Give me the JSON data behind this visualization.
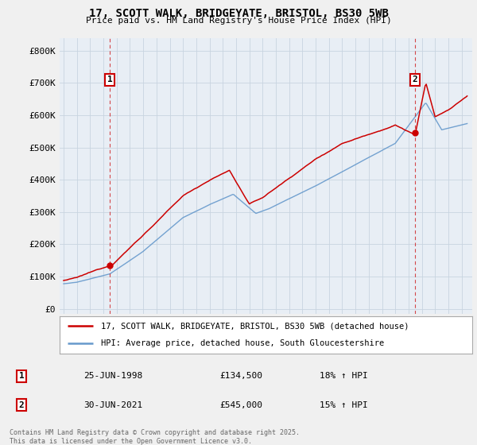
{
  "title_line1": "17, SCOTT WALK, BRIDGEYATE, BRISTOL, BS30 5WB",
  "title_line2": "Price paid vs. HM Land Registry's House Price Index (HPI)",
  "property_color": "#cc0000",
  "hpi_color": "#6699cc",
  "plot_bg_color": "#e8eef5",
  "fig_bg_color": "#f0f0f0",
  "yticks": [
    0,
    100000,
    200000,
    300000,
    400000,
    500000,
    600000,
    700000,
    800000
  ],
  "ytick_labels": [
    "£0",
    "£100K",
    "£200K",
    "£300K",
    "£400K",
    "£500K",
    "£600K",
    "£700K",
    "£800K"
  ],
  "ylim": [
    -15000,
    840000
  ],
  "xlim_left": 1994.7,
  "xlim_right": 2025.8,
  "sale1_x": 1998.48,
  "sale1_y": 134500,
  "sale1_label": "1",
  "sale2_x": 2021.49,
  "sale2_y": 545000,
  "sale2_label": "2",
  "legend_property": "17, SCOTT WALK, BRIDGEYATE, BRISTOL, BS30 5WB (detached house)",
  "legend_hpi": "HPI: Average price, detached house, South Gloucestershire",
  "annotation1_date": "25-JUN-1998",
  "annotation1_price": "£134,500",
  "annotation1_hpi": "18% ↑ HPI",
  "annotation2_date": "30-JUN-2021",
  "annotation2_price": "£545,000",
  "annotation2_hpi": "15% ↑ HPI",
  "footer_text": "Contains HM Land Registry data © Crown copyright and database right 2025.\nThis data is licensed under the Open Government Licence v3.0.",
  "vline_color": "#cc0000",
  "vline_alpha": 0.7
}
